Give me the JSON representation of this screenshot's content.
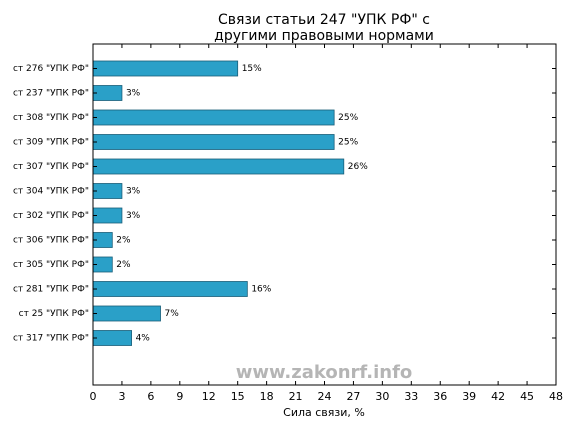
{
  "chart_data": {
    "type": "bar",
    "orientation": "horizontal",
    "title_lines": [
      "Связи статьи 247 \"УПК РФ\" с",
      "другими правовыми нормами"
    ],
    "xlabel": "Сила связи, %",
    "ylabel": "",
    "xlim": [
      0,
      48
    ],
    "xticks": [
      0,
      3,
      6,
      9,
      12,
      15,
      18,
      21,
      24,
      27,
      30,
      33,
      36,
      39,
      42,
      45,
      48
    ],
    "grid": false,
    "categories": [
      "ст 276 \"УПК РФ\"",
      "ст 237 \"УПК РФ\"",
      "ст 308 \"УПК РФ\"",
      "ст 309 \"УПК РФ\"",
      "ст 307 \"УПК РФ\"",
      "ст 304 \"УПК РФ\"",
      "ст 302 \"УПК РФ\"",
      "ст 306 \"УПК РФ\"",
      "ст 305 \"УПК РФ\"",
      "ст 281 \"УПК РФ\"",
      "ст 25 \"УПК РФ\"",
      "ст 317 \"УПК РФ\""
    ],
    "values": [
      15,
      3,
      25,
      25,
      26,
      3,
      3,
      2,
      2,
      16,
      7,
      4
    ],
    "value_labels": [
      "15%",
      "3%",
      "25%",
      "25%",
      "26%",
      "3%",
      "3%",
      "2%",
      "2%",
      "16%",
      "7%",
      "4%"
    ],
    "bar_color": "#2aa0c8",
    "bar_edge_color": "#1a5e78"
  },
  "watermark": "www.zakonrf.info"
}
